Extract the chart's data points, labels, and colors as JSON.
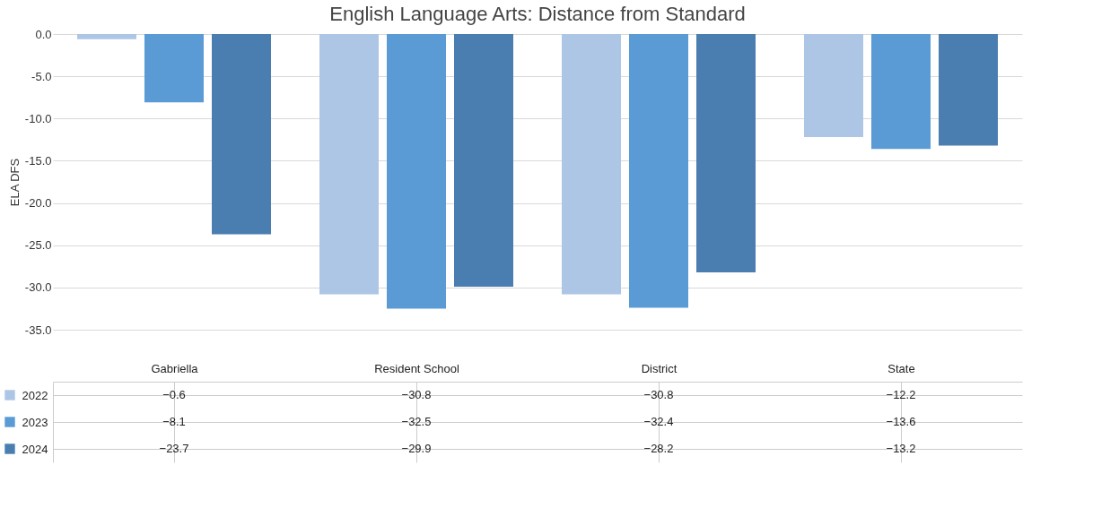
{
  "chart_data": {
    "type": "bar",
    "title": "English Language Arts: Distance from Standard",
    "ylabel": "ELA DFS",
    "categories": [
      "Gabriella",
      "Resident School",
      "District",
      "State"
    ],
    "series": [
      {
        "name": "2022",
        "color": "#aec6e6",
        "values": [
          -0.6,
          -30.8,
          -30.8,
          -12.2
        ]
      },
      {
        "name": "2023",
        "color": "#5b9bd5",
        "values": [
          -8.1,
          -32.5,
          -32.4,
          -13.6
        ]
      },
      {
        "name": "2024",
        "color": "#4a7eb0",
        "values": [
          -23.7,
          -29.9,
          -28.2,
          -13.2
        ]
      }
    ],
    "ylim": [
      -35,
      0
    ],
    "yticks": [
      {
        "value": 0,
        "label": "0.0"
      },
      {
        "value": -5,
        "label": "-5.0"
      },
      {
        "value": -10,
        "label": "-10.0"
      },
      {
        "value": -15,
        "label": "-15.0"
      },
      {
        "value": -20,
        "label": "-20.0"
      },
      {
        "value": -25,
        "label": "-25.0"
      },
      {
        "value": -30,
        "label": "-30.0"
      },
      {
        "value": -35,
        "label": "-35.0"
      }
    ],
    "grid": "y",
    "data_labels": true,
    "legend": "bottom"
  }
}
